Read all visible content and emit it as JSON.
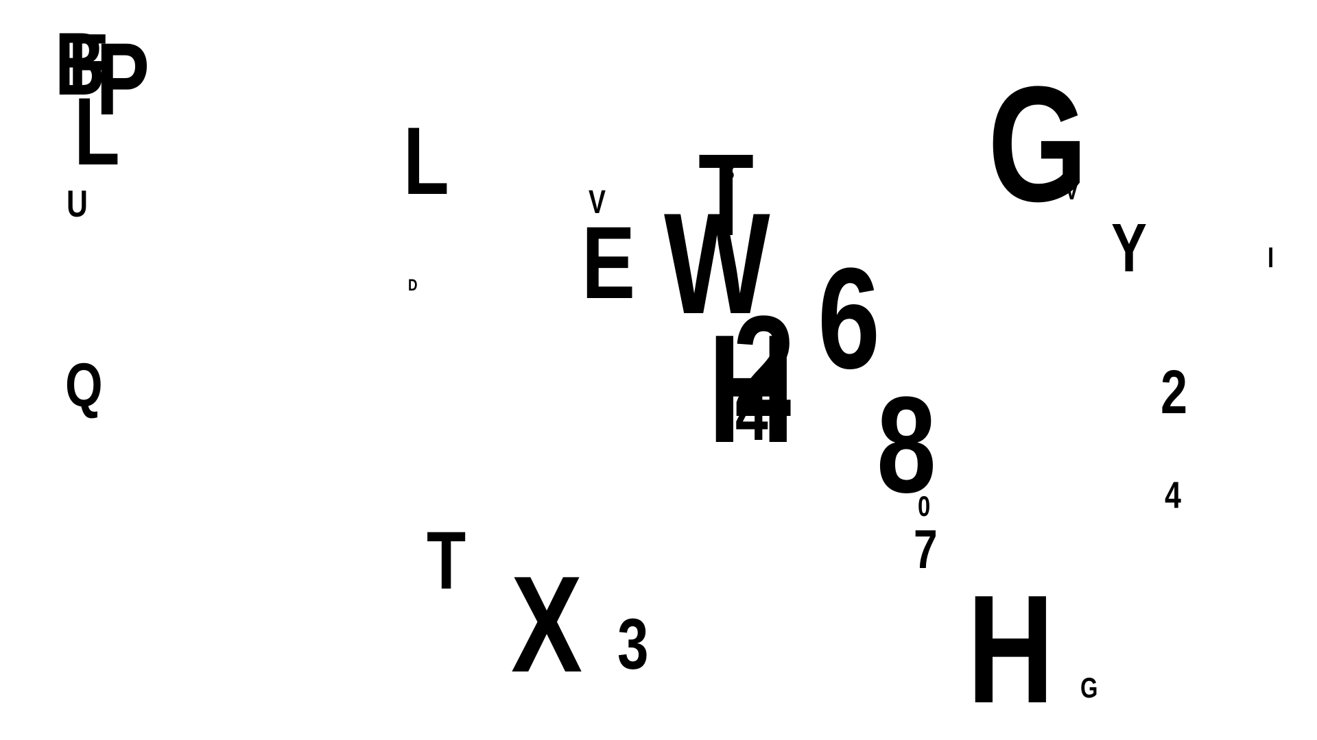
{
  "glyphs": [
    {
      "id": "g1",
      "text": "B"
    },
    {
      "id": "g2",
      "text": "P"
    },
    {
      "id": "g3",
      "text": "F"
    },
    {
      "id": "g4",
      "text": "L"
    },
    {
      "id": "g5",
      "text": "U"
    },
    {
      "id": "g6",
      "text": "L"
    },
    {
      "id": "g7",
      "text": "D"
    },
    {
      "id": "g8",
      "text": "V"
    },
    {
      "id": "g9",
      "text": "E"
    },
    {
      "id": "g10",
      "text": "T"
    },
    {
      "id": "g11",
      "text": "S"
    },
    {
      "id": "g12",
      "text": "W"
    },
    {
      "id": "g13",
      "text": "G"
    },
    {
      "id": "g14",
      "text": "V"
    },
    {
      "id": "g15",
      "text": "Y"
    },
    {
      "id": "g16",
      "text": "I"
    },
    {
      "id": "g17",
      "text": "6"
    },
    {
      "id": "g18",
      "text": "2"
    },
    {
      "id": "g19",
      "text": "H"
    },
    {
      "id": "g20",
      "text": "4"
    },
    {
      "id": "g21",
      "text": "Q"
    },
    {
      "id": "g22",
      "text": "8"
    },
    {
      "id": "g23",
      "text": "2"
    },
    {
      "id": "g24",
      "text": "4"
    },
    {
      "id": "g25",
      "text": "0"
    },
    {
      "id": "g26",
      "text": "T"
    },
    {
      "id": "g27",
      "text": "7"
    },
    {
      "id": "g28",
      "text": "X"
    },
    {
      "id": "g29",
      "text": "3"
    },
    {
      "id": "g30",
      "text": "H"
    },
    {
      "id": "g31",
      "text": "G"
    }
  ]
}
